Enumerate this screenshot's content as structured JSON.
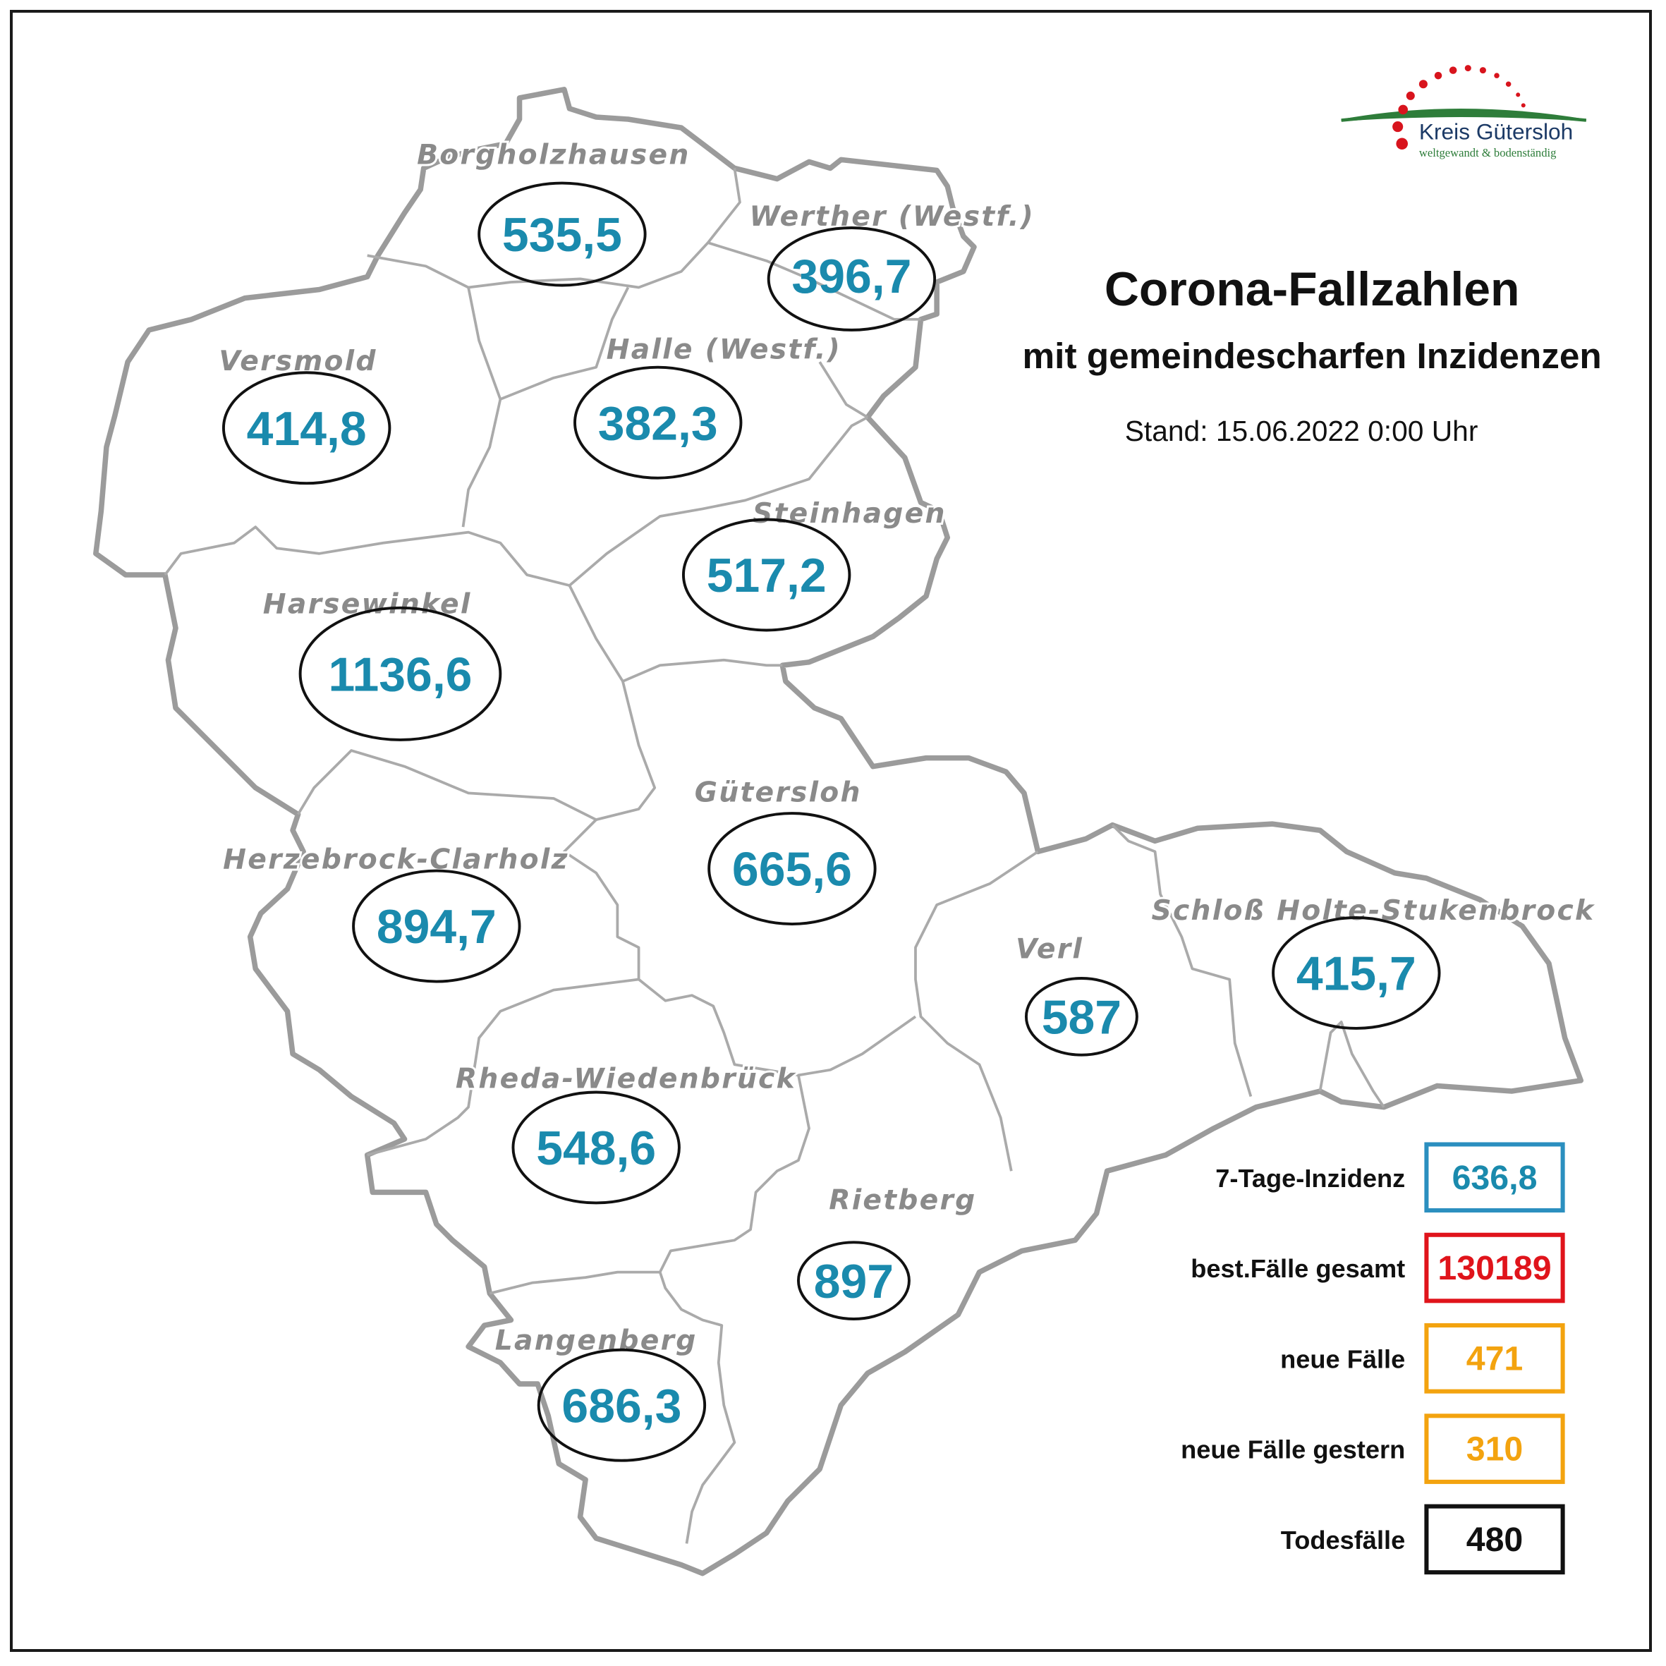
{
  "header": {
    "title": "Corona-Fallzahlen",
    "subtitle": "mit gemeindescharfen Inzidenzen",
    "stand": "Stand: 15.06.2022 0:00 Uhr"
  },
  "logo": {
    "name": "Kreis Gütersloh",
    "tagline": "weltgewandt & bodenständig"
  },
  "municipalities": [
    {
      "name": "Borgholzhausen",
      "incidence": "535,5"
    },
    {
      "name": "Werther (Westf.)",
      "incidence": "396,7"
    },
    {
      "name": "Versmold",
      "incidence": "414,8"
    },
    {
      "name": "Halle (Westf.)",
      "incidence": "382,3"
    },
    {
      "name": "Steinhagen",
      "incidence": "517,2"
    },
    {
      "name": "Harsewinkel",
      "incidence": "1136,6"
    },
    {
      "name": "Gütersloh",
      "incidence": "665,6"
    },
    {
      "name": "Herzebrock-Clarholz",
      "incidence": "894,7"
    },
    {
      "name": "Verl",
      "incidence": "587"
    },
    {
      "name": "Schloß Holte-Stukenbrock",
      "incidence": "415,7"
    },
    {
      "name": "Rheda-Wiedenbrück",
      "incidence": "548,6"
    },
    {
      "name": "Rietberg",
      "incidence": "897"
    },
    {
      "name": "Langenberg",
      "incidence": "686,3"
    }
  ],
  "stats": [
    {
      "label": "7-Tage-Inzidenz",
      "value": "636,8",
      "color": "#1a8aad",
      "border": "#2b8fbf"
    },
    {
      "label": "best.Fälle gesamt",
      "value": "130189",
      "color": "#e0141b",
      "border": "#e0141b"
    },
    {
      "label": "neue Fälle",
      "value": "471",
      "color": "#f3a30f",
      "border": "#f3a30f"
    },
    {
      "label": "neue Fälle gestern",
      "value": "310",
      "color": "#f3a30f",
      "border": "#f3a30f"
    },
    {
      "label": "Todesfälle",
      "value": "480",
      "color": "#111111",
      "border": "#111111"
    }
  ]
}
